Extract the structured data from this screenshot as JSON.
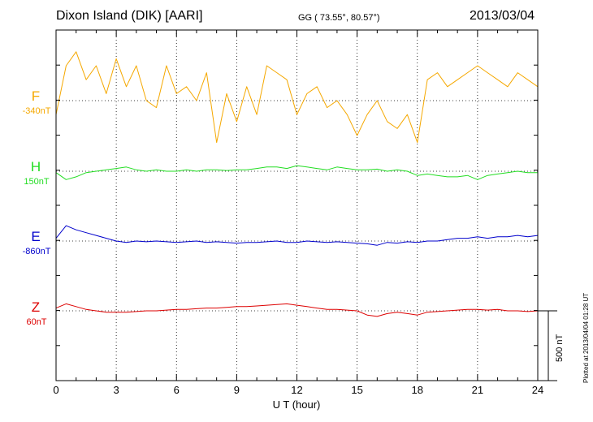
{
  "header": {
    "title": "Dixon Island (DIK)  [AARI]",
    "coords": "GG ( 73.55°,  80.57°)",
    "date": "2013/03/04"
  },
  "footer": {
    "plotted": "Plotted at 2013/04/04 01:28 UT"
  },
  "chart_data": {
    "type": "line",
    "title": "Dixon Island (DIK)  [AARI]",
    "xlabel": "U T (hour)",
    "xlim": [
      0,
      24
    ],
    "xticks": [
      0,
      3,
      6,
      9,
      12,
      15,
      18,
      21,
      24
    ],
    "scale_bar": {
      "label": "500 nT",
      "value_nT": 500
    },
    "series": [
      {
        "name": "F",
        "baseline_label": "-340nT",
        "baseline_nT": -340,
        "color": "#f5a800",
        "x": [
          0,
          0.5,
          1,
          1.5,
          2,
          2.5,
          3,
          3.5,
          4,
          4.5,
          5,
          5.5,
          6,
          6.5,
          7,
          7.5,
          8,
          8.5,
          9,
          9.5,
          10,
          10.5,
          11,
          11.5,
          12,
          12.5,
          13,
          13.5,
          14,
          14.5,
          15,
          15.5,
          16,
          16.5,
          17,
          17.5,
          18,
          18.5,
          19,
          19.5,
          20,
          20.5,
          21,
          21.5,
          22,
          22.5,
          23,
          23.5,
          24
        ],
        "values": [
          -100,
          250,
          350,
          150,
          250,
          50,
          300,
          100,
          250,
          0,
          -50,
          250,
          50,
          100,
          0,
          200,
          -300,
          50,
          -150,
          100,
          -100,
          250,
          200,
          150,
          -100,
          50,
          100,
          -50,
          0,
          -100,
          -250,
          -100,
          0,
          -150,
          -200,
          -100,
          -300,
          150,
          200,
          100,
          150,
          200,
          250,
          200,
          150,
          100,
          200,
          150,
          100
        ]
      },
      {
        "name": "H",
        "baseline_label": "150nT",
        "baseline_nT": 150,
        "color": "#22dd22",
        "x": [
          0,
          0.5,
          1,
          1.5,
          2,
          2.5,
          3,
          3.5,
          4,
          4.5,
          5,
          5.5,
          6,
          6.5,
          7,
          7.5,
          8,
          8.5,
          9,
          9.5,
          10,
          10.5,
          11,
          11.5,
          12,
          12.5,
          13,
          13.5,
          14,
          14.5,
          15,
          15.5,
          16,
          16.5,
          17,
          17.5,
          18,
          18.5,
          19,
          19.5,
          20,
          20.5,
          21,
          21.5,
          22,
          22.5,
          23,
          23.5,
          24
        ],
        "values": [
          -10,
          -60,
          -40,
          -10,
          0,
          10,
          20,
          30,
          10,
          0,
          10,
          0,
          0,
          10,
          0,
          10,
          10,
          5,
          10,
          10,
          20,
          30,
          30,
          20,
          40,
          30,
          20,
          10,
          30,
          20,
          10,
          10,
          15,
          0,
          10,
          0,
          -30,
          -20,
          -30,
          -40,
          -40,
          -30,
          -60,
          -30,
          -20,
          -10,
          0,
          -10,
          -10
        ]
      },
      {
        "name": "E",
        "baseline_label": "-860nT",
        "baseline_nT": -860,
        "color": "#0000cc",
        "x": [
          0,
          0.5,
          1,
          1.5,
          2,
          2.5,
          3,
          3.5,
          4,
          4.5,
          5,
          5.5,
          6,
          6.5,
          7,
          7.5,
          8,
          8.5,
          9,
          9.5,
          10,
          10.5,
          11,
          11.5,
          12,
          12.5,
          13,
          13.5,
          14,
          14.5,
          15,
          15.5,
          16,
          16.5,
          17,
          17.5,
          18,
          18.5,
          19,
          19.5,
          20,
          20.5,
          21,
          21.5,
          22,
          22.5,
          23,
          23.5,
          24
        ],
        "values": [
          20,
          110,
          80,
          60,
          40,
          20,
          0,
          -10,
          0,
          -5,
          0,
          -5,
          -10,
          -5,
          0,
          -10,
          -5,
          -10,
          -15,
          -10,
          -10,
          -5,
          0,
          -10,
          -10,
          0,
          -5,
          -10,
          -5,
          -10,
          -15,
          -20,
          -30,
          -10,
          -15,
          -5,
          -10,
          0,
          0,
          10,
          20,
          20,
          30,
          20,
          30,
          30,
          40,
          30,
          40
        ]
      },
      {
        "name": "Z",
        "baseline_label": "60nT",
        "baseline_nT": 60,
        "color": "#dd0000",
        "x": [
          0,
          0.5,
          1,
          1.5,
          2,
          2.5,
          3,
          3.5,
          4,
          4.5,
          5,
          5.5,
          6,
          6.5,
          7,
          7.5,
          8,
          8.5,
          9,
          9.5,
          10,
          10.5,
          11,
          11.5,
          12,
          12.5,
          13,
          13.5,
          14,
          14.5,
          15,
          15.5,
          16,
          16.5,
          17,
          17.5,
          18,
          18.5,
          19,
          19.5,
          20,
          20.5,
          21,
          21.5,
          22,
          22.5,
          23,
          23.5,
          24
        ],
        "values": [
          20,
          50,
          30,
          10,
          0,
          -10,
          -10,
          -10,
          -5,
          0,
          0,
          5,
          10,
          10,
          15,
          20,
          20,
          25,
          30,
          30,
          35,
          40,
          45,
          50,
          40,
          30,
          20,
          10,
          10,
          5,
          0,
          -30,
          -40,
          -20,
          -10,
          -20,
          -30,
          -10,
          -5,
          0,
          5,
          10,
          10,
          5,
          10,
          0,
          0,
          -5,
          0
        ]
      }
    ]
  }
}
